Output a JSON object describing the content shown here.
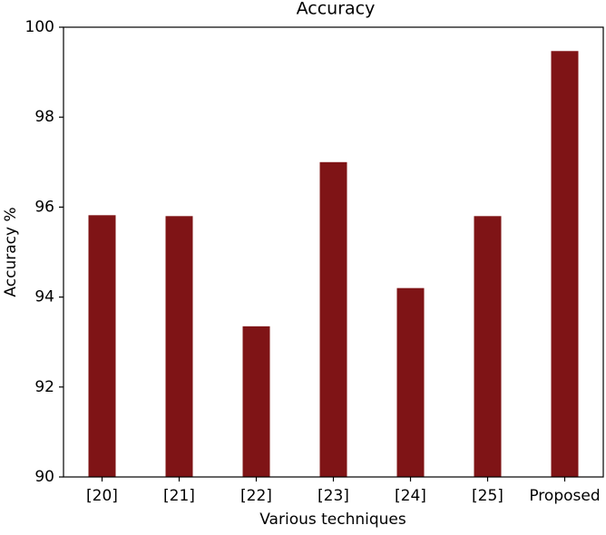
{
  "chart_data": {
    "type": "bar",
    "title": "Accuracy",
    "xlabel": "Various techniques",
    "ylabel": "Accuracy %",
    "categories": [
      "[20]",
      "[21]",
      "[22]",
      "[23]",
      "[24]",
      "[25]",
      "Proposed"
    ],
    "values": [
      95.82,
      95.8,
      93.35,
      97.0,
      94.2,
      95.8,
      99.47
    ],
    "color": "#7f1416",
    "ylim": [
      90,
      100
    ],
    "yticks": [
      90,
      92,
      94,
      96,
      98,
      100
    ],
    "grid": false
  }
}
